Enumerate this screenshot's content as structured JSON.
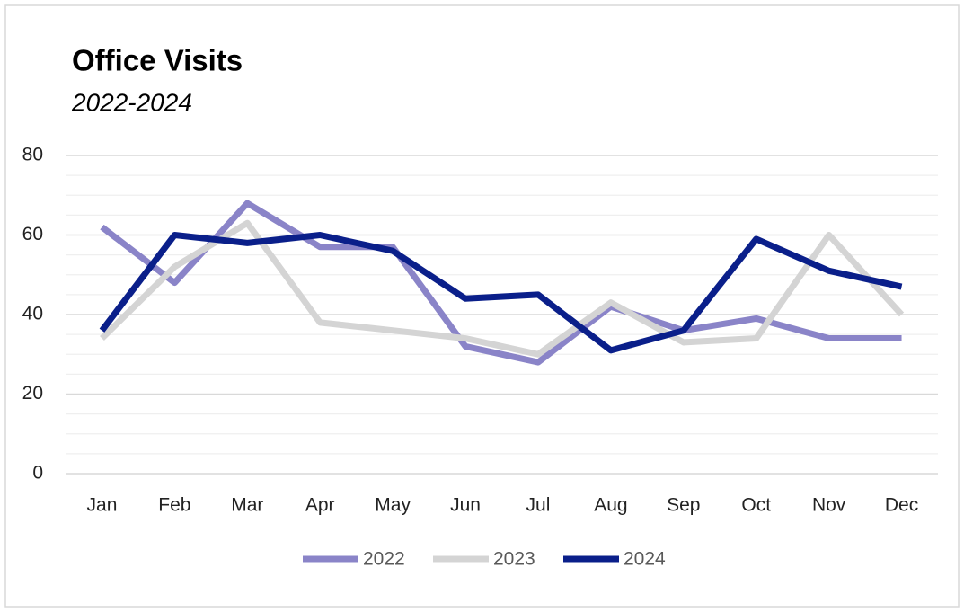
{
  "chart_data": {
    "type": "line",
    "title": "Office Visits",
    "subtitle": "2022-2024",
    "categories": [
      "Jan",
      "Feb",
      "Mar",
      "Apr",
      "May",
      "Jun",
      "Jul",
      "Aug",
      "Sep",
      "Oct",
      "Nov",
      "Dec"
    ],
    "series": [
      {
        "name": "2022",
        "color": "#8a84c8",
        "values": [
          62,
          48,
          68,
          57,
          57,
          32,
          28,
          42,
          36,
          39,
          34,
          34
        ]
      },
      {
        "name": "2023",
        "color": "#d4d4d4",
        "values": [
          34,
          52,
          63,
          38,
          36,
          34,
          30,
          43,
          33,
          34,
          60,
          40
        ]
      },
      {
        "name": "2024",
        "color": "#0a1f8a",
        "values": [
          36,
          60,
          58,
          60,
          56,
          44,
          45,
          31,
          36,
          59,
          51,
          47
        ]
      }
    ],
    "ylim": [
      0,
      80
    ],
    "yticks": [
      0,
      20,
      40,
      60,
      80
    ],
    "minor_yticks": [
      5,
      10,
      15,
      25,
      30,
      35,
      45,
      50,
      55,
      65,
      70,
      75
    ],
    "grid": true,
    "legend": "bottom"
  }
}
